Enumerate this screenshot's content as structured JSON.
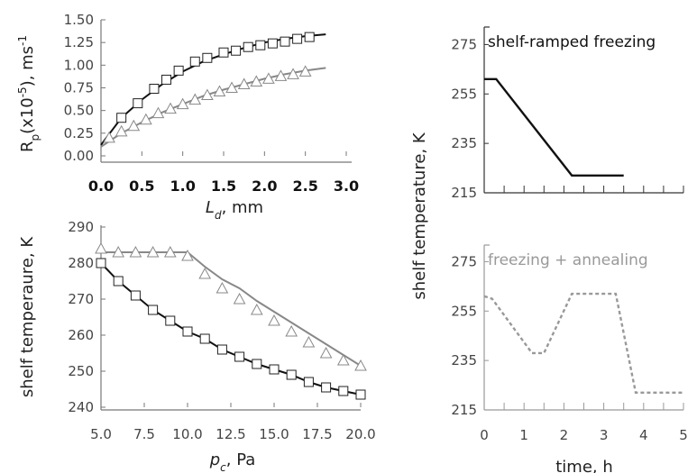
{
  "chart_data": [
    {
      "id": "rp-vs-ld",
      "type": "line",
      "xlabel_main": "L",
      "xlabel_sub": "d",
      "xlabel_unit": ", mm",
      "ylabel_main": "R",
      "ylabel_sub": "p",
      "ylabel_mid": "(x10",
      "ylabel_sup": "-5",
      "ylabel_tail": "), ms",
      "ylabel_unit_sup": "-1",
      "xlim": [
        0,
        3.0
      ],
      "ylim": [
        0,
        1.5
      ],
      "xticks": [
        0.0,
        0.5,
        1.0,
        1.5,
        2.0,
        2.5,
        3.0
      ],
      "xtick_labels": [
        "0.0",
        "0.5",
        "1.0",
        "1.5",
        "2.0",
        "2.5",
        "3.0"
      ],
      "yticks": [
        0,
        0.25,
        0.5,
        0.75,
        1.0,
        1.25,
        1.5
      ],
      "ytick_labels": [
        "0.00",
        "0.25",
        "0.50",
        "0.75",
        "1.00",
        "1.25",
        "1.50"
      ],
      "grid": false,
      "series": [
        {
          "marker": "square",
          "color": "#111111",
          "line": [
            [
              0,
              0.12
            ],
            [
              0.25,
              0.42
            ],
            [
              0.5,
              0.62
            ],
            [
              0.75,
              0.79
            ],
            [
              1.0,
              0.93
            ],
            [
              1.25,
              1.04
            ],
            [
              1.5,
              1.12
            ],
            [
              1.75,
              1.19
            ],
            [
              2.0,
              1.25
            ],
            [
              2.25,
              1.29
            ],
            [
              2.5,
              1.32
            ],
            [
              2.75,
              1.34
            ]
          ],
          "points": [
            [
              0.25,
              0.42
            ],
            [
              0.45,
              0.58
            ],
            [
              0.65,
              0.74
            ],
            [
              0.8,
              0.84
            ],
            [
              0.95,
              0.94
            ],
            [
              1.15,
              1.04
            ],
            [
              1.3,
              1.08
            ],
            [
              1.5,
              1.14
            ],
            [
              1.65,
              1.16
            ],
            [
              1.8,
              1.2
            ],
            [
              1.95,
              1.22
            ],
            [
              2.1,
              1.24
            ],
            [
              2.25,
              1.26
            ],
            [
              2.4,
              1.29
            ],
            [
              2.55,
              1.31
            ]
          ]
        },
        {
          "marker": "triangle",
          "color": "#888888",
          "line": [
            [
              0,
              0.1
            ],
            [
              0.25,
              0.25
            ],
            [
              0.5,
              0.37
            ],
            [
              0.75,
              0.48
            ],
            [
              1.0,
              0.57
            ],
            [
              1.25,
              0.66
            ],
            [
              1.5,
              0.73
            ],
            [
              1.75,
              0.79
            ],
            [
              2.0,
              0.85
            ],
            [
              2.25,
              0.9
            ],
            [
              2.5,
              0.94
            ],
            [
              2.75,
              0.97
            ]
          ],
          "points": [
            [
              0.1,
              0.2
            ],
            [
              0.25,
              0.27
            ],
            [
              0.4,
              0.33
            ],
            [
              0.55,
              0.4
            ],
            [
              0.7,
              0.47
            ],
            [
              0.85,
              0.52
            ],
            [
              1.0,
              0.57
            ],
            [
              1.15,
              0.62
            ],
            [
              1.3,
              0.67
            ],
            [
              1.45,
              0.71
            ],
            [
              1.6,
              0.75
            ],
            [
              1.75,
              0.79
            ],
            [
              1.9,
              0.82
            ],
            [
              2.05,
              0.85
            ],
            [
              2.2,
              0.88
            ],
            [
              2.35,
              0.9
            ],
            [
              2.5,
              0.93
            ]
          ]
        }
      ]
    },
    {
      "id": "shelf-vs-pc",
      "type": "line",
      "xlabel_main": "p",
      "xlabel_sub": "c",
      "xlabel_unit": ", Pa",
      "ylabel": "shelf temperaure, K",
      "xlim": [
        5.0,
        20.0
      ],
      "ylim": [
        240,
        290
      ],
      "xticks": [
        5.0,
        7.5,
        10.0,
        12.5,
        15.0,
        17.5,
        20.0
      ],
      "xtick_labels": [
        "5.0",
        "7.5",
        "10.0",
        "12.5",
        "15.0",
        "17.5",
        "20.0"
      ],
      "yticks": [
        240,
        250,
        260,
        270,
        280,
        290
      ],
      "ytick_labels": [
        "240",
        "250",
        "260",
        "270",
        "280",
        "290"
      ],
      "grid": false,
      "series": [
        {
          "marker": "square",
          "color": "#111111",
          "line": [
            [
              5,
              280
            ],
            [
              6,
              275
            ],
            [
              7,
              271
            ],
            [
              8,
              267
            ],
            [
              9,
              264
            ],
            [
              10,
              261
            ],
            [
              11,
              259
            ],
            [
              12,
              256
            ],
            [
              13,
              254
            ],
            [
              14,
              252
            ],
            [
              15,
              250.5
            ],
            [
              16,
              249
            ],
            [
              17,
              247
            ],
            [
              18,
              245.5
            ],
            [
              19,
              244.5
            ],
            [
              20,
              243.5
            ]
          ],
          "points": [
            [
              5,
              280
            ],
            [
              6,
              275
            ],
            [
              7,
              271
            ],
            [
              8,
              267
            ],
            [
              9,
              264
            ],
            [
              10,
              261
            ],
            [
              11,
              259
            ],
            [
              12,
              256
            ],
            [
              13,
              254
            ],
            [
              14,
              252
            ],
            [
              15,
              250.5
            ],
            [
              16,
              249
            ],
            [
              17,
              247
            ],
            [
              18,
              245.5
            ],
            [
              19,
              244.5
            ],
            [
              20,
              243.5
            ]
          ]
        },
        {
          "marker": "triangle",
          "color": "#888888",
          "line": [
            [
              5,
              283
            ],
            [
              10,
              283
            ],
            [
              11,
              279
            ],
            [
              12,
              275.5
            ],
            [
              13,
              273
            ],
            [
              14,
              269.5
            ],
            [
              15,
              266.5
            ],
            [
              16,
              263.5
            ],
            [
              17,
              260.5
            ],
            [
              18,
              257.5
            ],
            [
              19,
              254.5
            ],
            [
              20,
              251.5
            ]
          ],
          "points": [
            [
              5,
              284
            ],
            [
              6,
              283
            ],
            [
              7,
              283
            ],
            [
              8,
              283
            ],
            [
              9,
              283
            ],
            [
              10,
              282
            ],
            [
              11,
              277
            ],
            [
              12,
              273
            ],
            [
              13,
              270
            ],
            [
              14,
              267
            ],
            [
              15,
              264
            ],
            [
              16,
              261
            ],
            [
              17,
              258
            ],
            [
              18,
              255
            ],
            [
              19,
              253
            ],
            [
              20,
              251.5
            ]
          ]
        }
      ]
    },
    {
      "id": "shelf-ramped",
      "type": "line",
      "title": "shelf-ramped freezing",
      "ylim": [
        215,
        285
      ],
      "yticks": [
        215,
        235,
        255,
        275
      ],
      "ytick_labels": [
        "215",
        "235",
        "255",
        "275"
      ],
      "xlim": [
        0,
        5
      ],
      "grid": false,
      "series": [
        {
          "color": "#111111",
          "dashed": false,
          "line": [
            [
              0,
              261
            ],
            [
              0.3,
              261
            ],
            [
              2.2,
              222
            ],
            [
              3.5,
              222
            ]
          ]
        }
      ]
    },
    {
      "id": "freezing-annealing",
      "type": "line",
      "title": "freezing + annealing",
      "ylim": [
        215,
        285
      ],
      "yticks": [
        215,
        235,
        255,
        275
      ],
      "ytick_labels": [
        "215",
        "235",
        "255",
        "275"
      ],
      "xlim": [
        0,
        5
      ],
      "xticks": [
        0,
        1,
        2,
        3,
        4,
        5
      ],
      "xtick_labels": [
        "0",
        "1",
        "2",
        "3",
        "4",
        "5"
      ],
      "xlabel": "time, h",
      "grid": false,
      "series": [
        {
          "color": "#999999",
          "dashed": true,
          "line": [
            [
              0,
              261
            ],
            [
              0.2,
              260
            ],
            [
              1.2,
              238
            ],
            [
              1.5,
              238
            ],
            [
              2.2,
              262
            ],
            [
              3.3,
              262
            ],
            [
              3.8,
              222
            ],
            [
              5,
              222
            ]
          ]
        }
      ]
    }
  ],
  "shared_ylabel_right": "shelf temperature, K"
}
